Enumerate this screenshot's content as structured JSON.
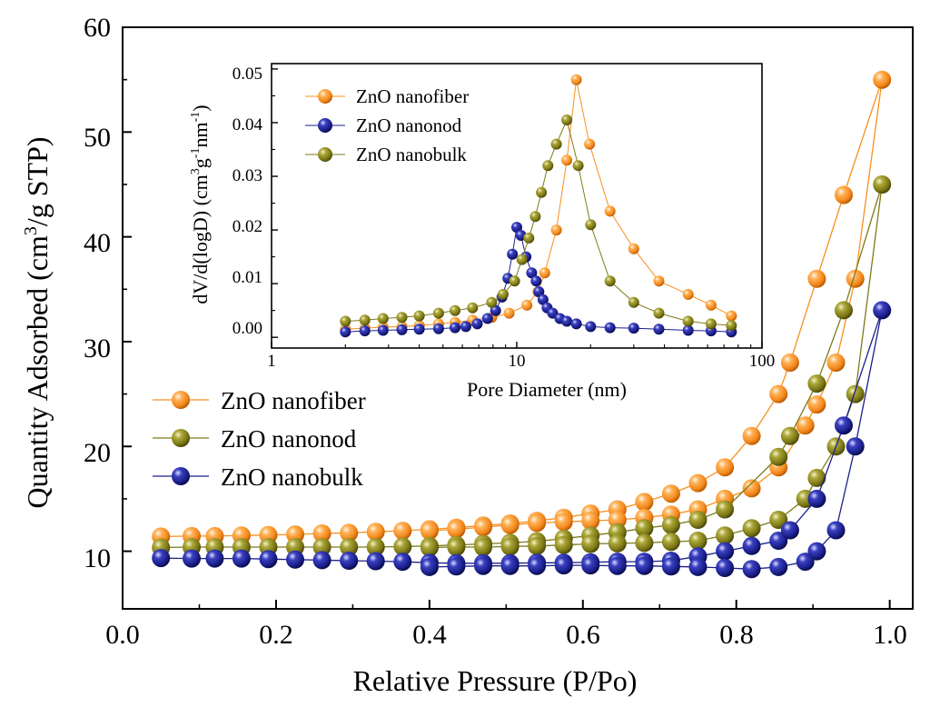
{
  "colors": {
    "orange": "#f7901e",
    "olive": "#7e7a1a",
    "navy": "#1a1f8a",
    "axis": "#000000"
  },
  "chart_data": [
    {
      "id": "main",
      "type": "line",
      "title": "",
      "xlabel": "Relative Pressure (P/Po)",
      "ylabel_pre": "Quantity Adsorbed (cm",
      "ylabel_sup": "3",
      "ylabel_post": "/g STP)",
      "xlim": [
        0.0,
        1.03
      ],
      "ylim": [
        4.5,
        60
      ],
      "xticks": [
        0.0,
        0.2,
        0.4,
        0.6,
        0.8,
        1.0
      ],
      "xtick_labels": [
        "0.0",
        "0.2",
        "0.4",
        "0.6",
        "0.8",
        "1.0"
      ],
      "yticks": [
        10,
        20,
        30,
        40,
        50,
        60
      ],
      "ytick_labels": [
        "10",
        "20",
        "30",
        "40",
        "50",
        "60"
      ],
      "legend_position": "middle-left",
      "series": [
        {
          "name": "ZnO nanofiber",
          "color_key": "orange",
          "points": [
            [
              0.05,
              11.4
            ],
            [
              0.09,
              11.45
            ],
            [
              0.12,
              11.45
            ],
            [
              0.155,
              11.5
            ],
            [
              0.19,
              11.55
            ],
            [
              0.225,
              11.6
            ],
            [
              0.26,
              11.7
            ],
            [
              0.295,
              11.75
            ],
            [
              0.33,
              11.85
            ],
            [
              0.365,
              11.95
            ],
            [
              0.4,
              12.1
            ],
            [
              0.435,
              12.25
            ],
            [
              0.47,
              12.45
            ],
            [
              0.505,
              12.65
            ],
            [
              0.54,
              12.9
            ],
            [
              0.575,
              13.2
            ],
            [
              0.61,
              13.6
            ],
            [
              0.645,
              14.0
            ],
            [
              0.68,
              14.7
            ],
            [
              0.715,
              15.5
            ],
            [
              0.75,
              16.5
            ],
            [
              0.785,
              18.0
            ],
            [
              0.82,
              21.0
            ],
            [
              0.855,
              25.0
            ],
            [
              0.87,
              28.0
            ],
            [
              0.905,
              36.0
            ],
            [
              0.94,
              44.0
            ],
            [
              0.99,
              55.0
            ],
            [
              0.955,
              36.0
            ],
            [
              0.93,
              28.0
            ],
            [
              0.905,
              24.0
            ],
            [
              0.89,
              22.0
            ],
            [
              0.855,
              18.0
            ],
            [
              0.82,
              16.0
            ],
            [
              0.785,
              15.0
            ],
            [
              0.75,
              14.0
            ],
            [
              0.715,
              13.5
            ],
            [
              0.68,
              13.2
            ],
            [
              0.645,
              13.0
            ],
            [
              0.61,
              12.9
            ],
            [
              0.575,
              12.8
            ],
            [
              0.54,
              12.7
            ],
            [
              0.505,
              12.5
            ],
            [
              0.47,
              12.3
            ],
            [
              0.435,
              12.1
            ],
            [
              0.4,
              11.95
            ]
          ]
        },
        {
          "name": "ZnO nanonod",
          "color_key": "olive",
          "points": [
            [
              0.05,
              10.35
            ],
            [
              0.09,
              10.4
            ],
            [
              0.12,
              10.4
            ],
            [
              0.155,
              10.4
            ],
            [
              0.19,
              10.4
            ],
            [
              0.225,
              10.4
            ],
            [
              0.26,
              10.4
            ],
            [
              0.295,
              10.4
            ],
            [
              0.33,
              10.4
            ],
            [
              0.365,
              10.45
            ],
            [
              0.4,
              10.5
            ],
            [
              0.435,
              10.6
            ],
            [
              0.47,
              10.7
            ],
            [
              0.505,
              10.8
            ],
            [
              0.54,
              10.95
            ],
            [
              0.575,
              11.2
            ],
            [
              0.61,
              11.5
            ],
            [
              0.645,
              11.8
            ],
            [
              0.68,
              12.2
            ],
            [
              0.715,
              12.5
            ],
            [
              0.75,
              13.0
            ],
            [
              0.785,
              14.0
            ],
            [
              0.855,
              19.0
            ],
            [
              0.87,
              21.0
            ],
            [
              0.905,
              26.0
            ],
            [
              0.94,
              33.0
            ],
            [
              0.99,
              45.0
            ],
            [
              0.955,
              25.0
            ],
            [
              0.93,
              20.0
            ],
            [
              0.905,
              17.0
            ],
            [
              0.89,
              15.0
            ],
            [
              0.855,
              13.0
            ],
            [
              0.82,
              12.2
            ],
            [
              0.785,
              11.5
            ],
            [
              0.75,
              11.0
            ],
            [
              0.715,
              10.9
            ],
            [
              0.68,
              10.8
            ],
            [
              0.645,
              10.75
            ],
            [
              0.61,
              10.7
            ],
            [
              0.575,
              10.6
            ],
            [
              0.54,
              10.5
            ],
            [
              0.505,
              10.45
            ],
            [
              0.47,
              10.4
            ],
            [
              0.435,
              10.4
            ],
            [
              0.4,
              10.35
            ]
          ]
        },
        {
          "name": "ZnO nanobulk",
          "color_key": "navy",
          "points": [
            [
              0.05,
              9.35
            ],
            [
              0.09,
              9.3
            ],
            [
              0.12,
              9.3
            ],
            [
              0.155,
              9.3
            ],
            [
              0.19,
              9.25
            ],
            [
              0.225,
              9.2
            ],
            [
              0.26,
              9.15
            ],
            [
              0.295,
              9.1
            ],
            [
              0.33,
              9.05
            ],
            [
              0.365,
              9.0
            ],
            [
              0.4,
              8.9
            ],
            [
              0.435,
              8.85
            ],
            [
              0.47,
              8.85
            ],
            [
              0.505,
              8.85
            ],
            [
              0.54,
              8.9
            ],
            [
              0.575,
              8.9
            ],
            [
              0.61,
              8.95
            ],
            [
              0.645,
              9.0
            ],
            [
              0.68,
              9.0
            ],
            [
              0.715,
              9.1
            ],
            [
              0.75,
              9.5
            ],
            [
              0.785,
              10.0
            ],
            [
              0.82,
              10.5
            ],
            [
              0.855,
              11.0
            ],
            [
              0.87,
              12.0
            ],
            [
              0.905,
              15.0
            ],
            [
              0.94,
              22.0
            ],
            [
              0.99,
              33.0
            ],
            [
              0.955,
              20.0
            ],
            [
              0.93,
              12.0
            ],
            [
              0.905,
              10.0
            ],
            [
              0.89,
              9.0
            ],
            [
              0.855,
              8.5
            ],
            [
              0.82,
              8.3
            ],
            [
              0.785,
              8.4
            ],
            [
              0.75,
              8.5
            ],
            [
              0.715,
              8.55
            ],
            [
              0.68,
              8.6
            ],
            [
              0.645,
              8.6
            ],
            [
              0.61,
              8.65
            ],
            [
              0.575,
              8.65
            ],
            [
              0.54,
              8.6
            ],
            [
              0.505,
              8.6
            ],
            [
              0.47,
              8.6
            ],
            [
              0.435,
              8.55
            ],
            [
              0.4,
              8.5
            ]
          ]
        }
      ]
    },
    {
      "id": "inset",
      "type": "line",
      "title": "",
      "xscale": "log",
      "xlabel": "Pore Diameter (nm)",
      "ylabel_parts": [
        "dV/d(logD) (cm",
        "3",
        "g",
        "-1",
        "nm",
        "-1",
        ")"
      ],
      "xlim": [
        1,
        100
      ],
      "ylim": [
        -0.002,
        0.051
      ],
      "xticks": [
        1,
        10,
        100
      ],
      "xtick_labels": [
        "1",
        "10",
        "100"
      ],
      "yticks": [
        0.0,
        0.01,
        0.02,
        0.03,
        0.04,
        0.05
      ],
      "ytick_labels": [
        "0.00",
        "0.01",
        "0.02",
        "0.03",
        "0.04",
        "0.05"
      ],
      "legend_position": "top-left",
      "series": [
        {
          "name": "ZnO nanofiber",
          "color_key": "orange",
          "points": [
            [
              2.0,
              0.0015
            ],
            [
              2.4,
              0.0017
            ],
            [
              2.85,
              0.0019
            ],
            [
              3.4,
              0.002
            ],
            [
              4.0,
              0.0022
            ],
            [
              4.8,
              0.0025
            ],
            [
              5.6,
              0.0028
            ],
            [
              6.6,
              0.0032
            ],
            [
              7.9,
              0.0037
            ],
            [
              9.3,
              0.0045
            ],
            [
              11.0,
              0.006
            ],
            [
              12.2,
              0.0085
            ],
            [
              13.0,
              0.012
            ],
            [
              14.5,
              0.02
            ],
            [
              16.0,
              0.033
            ],
            [
              17.5,
              0.048
            ],
            [
              19.8,
              0.036
            ],
            [
              24.0,
              0.0235
            ],
            [
              30.0,
              0.0165
            ],
            [
              38.0,
              0.0105
            ],
            [
              50.0,
              0.008
            ],
            [
              62.0,
              0.006
            ],
            [
              75.0,
              0.004
            ]
          ]
        },
        {
          "name": "ZnO nanonod",
          "color_key": "navy",
          "points": [
            [
              2.0,
              0.001
            ],
            [
              2.4,
              0.0012
            ],
            [
              2.85,
              0.0013
            ],
            [
              3.4,
              0.0014
            ],
            [
              4.0,
              0.0015
            ],
            [
              4.8,
              0.0016
            ],
            [
              5.6,
              0.0018
            ],
            [
              6.2,
              0.002
            ],
            [
              6.9,
              0.0025
            ],
            [
              7.6,
              0.0035
            ],
            [
              8.2,
              0.005
            ],
            [
              8.7,
              0.0075
            ],
            [
              9.2,
              0.011
            ],
            [
              9.6,
              0.0155
            ],
            [
              10.0,
              0.0205
            ],
            [
              10.4,
              0.019
            ],
            [
              10.9,
              0.015
            ],
            [
              11.5,
              0.012
            ],
            [
              12.0,
              0.0105
            ],
            [
              12.3,
              0.0085
            ],
            [
              12.8,
              0.007
            ],
            [
              13.3,
              0.0055
            ],
            [
              14.0,
              0.0045
            ],
            [
              15.0,
              0.0035
            ],
            [
              16.0,
              0.003
            ],
            [
              17.5,
              0.0025
            ],
            [
              20.0,
              0.002
            ],
            [
              24.0,
              0.0018
            ],
            [
              30.0,
              0.0017
            ],
            [
              38.0,
              0.0015
            ],
            [
              50.0,
              0.0013
            ],
            [
              62.0,
              0.0012
            ],
            [
              75.0,
              0.001
            ]
          ]
        },
        {
          "name": "ZnO nanobulk",
          "color_key": "olive",
          "points": [
            [
              2.0,
              0.003
            ],
            [
              2.4,
              0.0032
            ],
            [
              2.85,
              0.0035
            ],
            [
              3.4,
              0.0037
            ],
            [
              4.0,
              0.004
            ],
            [
              4.8,
              0.0045
            ],
            [
              5.6,
              0.005
            ],
            [
              6.6,
              0.0055
            ],
            [
              7.9,
              0.0065
            ],
            [
              8.8,
              0.008
            ],
            [
              9.8,
              0.0105
            ],
            [
              10.5,
              0.0145
            ],
            [
              11.2,
              0.0185
            ],
            [
              11.9,
              0.0225
            ],
            [
              12.6,
              0.027
            ],
            [
              13.4,
              0.032
            ],
            [
              14.5,
              0.036
            ],
            [
              16.0,
              0.0405
            ],
            [
              17.8,
              0.032
            ],
            [
              20.0,
              0.021
            ],
            [
              24.0,
              0.0105
            ],
            [
              30.0,
              0.0065
            ],
            [
              38.0,
              0.0045
            ],
            [
              50.0,
              0.003
            ],
            [
              62.0,
              0.0025
            ],
            [
              75.0,
              0.0022
            ]
          ]
        }
      ]
    }
  ]
}
